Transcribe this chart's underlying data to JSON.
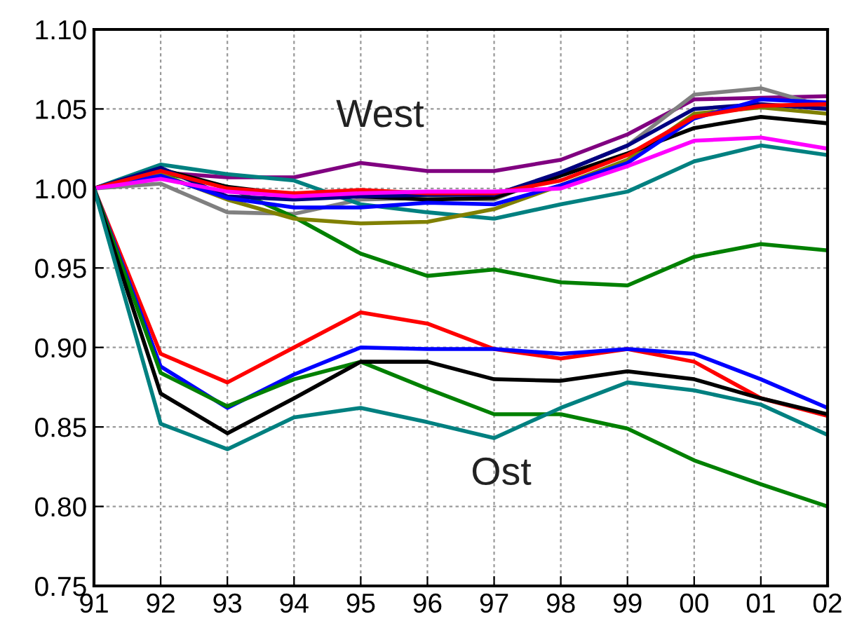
{
  "chart_data": {
    "type": "line",
    "x": [
      1991,
      1992,
      1993,
      1994,
      1995,
      1996,
      1997,
      1998,
      1999,
      2000,
      2001,
      2002
    ],
    "series": [
      {
        "color": "#800080",
        "values": [
          1.0,
          1.01,
          1.007,
          1.007,
          1.016,
          1.011,
          1.011,
          1.018,
          1.034,
          1.056,
          1.057,
          1.058
        ]
      },
      {
        "color": "#808080",
        "values": [
          1.0,
          1.003,
          0.985,
          0.984,
          0.993,
          0.994,
          0.993,
          1.01,
          1.027,
          1.059,
          1.063,
          1.051
        ]
      },
      {
        "color": "#008080",
        "values": [
          1.0,
          1.015,
          1.009,
          1.005,
          0.99,
          0.985,
          0.981,
          0.99,
          0.998,
          1.017,
          1.027,
          1.021
        ]
      },
      {
        "color": "#008000",
        "values": [
          1.0,
          1.01,
          1.001,
          0.982,
          0.959,
          0.945,
          0.949,
          0.941,
          0.939,
          0.957,
          0.965,
          0.961
        ]
      },
      {
        "color": "#808000",
        "values": [
          1.0,
          1.009,
          0.993,
          0.981,
          0.978,
          0.979,
          0.987,
          1.002,
          1.018,
          1.047,
          1.051,
          1.047
        ]
      },
      {
        "color": "#000000",
        "values": [
          1.0,
          1.012,
          1.001,
          0.996,
          0.995,
          0.993,
          0.994,
          1.008,
          1.022,
          1.038,
          1.045,
          1.041
        ]
      },
      {
        "color": "#000080",
        "values": [
          1.0,
          1.013,
          0.995,
          0.993,
          0.995,
          0.996,
          0.996,
          1.01,
          1.027,
          1.05,
          1.053,
          1.05
        ]
      },
      {
        "color": "#0000ff",
        "values": [
          1.0,
          1.008,
          0.994,
          0.988,
          0.988,
          0.991,
          0.99,
          1.002,
          1.016,
          1.044,
          1.056,
          1.054
        ]
      },
      {
        "color": "#ff0000",
        "values": [
          1.0,
          1.011,
          1.0,
          0.997,
          0.999,
          0.997,
          0.997,
          1.005,
          1.021,
          1.045,
          1.052,
          1.053
        ]
      },
      {
        "color": "#ff00ff",
        "values": [
          1.0,
          1.006,
          0.998,
          0.995,
          0.997,
          0.998,
          0.998,
          1.0,
          1.014,
          1.03,
          1.032,
          1.025
        ]
      },
      {
        "color": "#ff0000",
        "values": [
          1.0,
          0.896,
          0.878,
          0.9,
          0.922,
          0.915,
          0.899,
          0.893,
          0.899,
          0.891,
          0.868,
          0.857
        ]
      },
      {
        "color": "#0000ff",
        "values": [
          1.0,
          0.888,
          0.862,
          0.883,
          0.9,
          0.899,
          0.899,
          0.896,
          0.899,
          0.896,
          0.88,
          0.862
        ]
      },
      {
        "color": "#008000",
        "values": [
          1.0,
          0.884,
          0.863,
          0.88,
          0.891,
          0.874,
          0.858,
          0.858,
          0.849,
          0.829,
          0.814,
          0.8
        ]
      },
      {
        "color": "#000000",
        "values": [
          1.0,
          0.871,
          0.846,
          0.868,
          0.891,
          0.891,
          0.88,
          0.879,
          0.885,
          0.88,
          0.868,
          0.858
        ]
      },
      {
        "color": "#008080",
        "values": [
          1.0,
          0.852,
          0.836,
          0.856,
          0.862,
          0.853,
          0.843,
          0.862,
          0.878,
          0.873,
          0.864,
          0.845
        ]
      }
    ],
    "xlim": [
      1991,
      2002
    ],
    "xticks": [
      {
        "value": 1991,
        "label": "91"
      },
      {
        "value": 1992,
        "label": "92"
      },
      {
        "value": 1993,
        "label": "93"
      },
      {
        "value": 1994,
        "label": "94"
      },
      {
        "value": 1995,
        "label": "95"
      },
      {
        "value": 1996,
        "label": "96"
      },
      {
        "value": 1997,
        "label": "97"
      },
      {
        "value": 1998,
        "label": "98"
      },
      {
        "value": 1999,
        "label": "99"
      },
      {
        "value": 2000,
        "label": "00"
      },
      {
        "value": 2001,
        "label": "01"
      },
      {
        "value": 2002,
        "label": "02"
      }
    ],
    "ylim": [
      0.75,
      1.1
    ],
    "yticks": [
      {
        "value": 0.75,
        "label": "0.75"
      },
      {
        "value": 0.8,
        "label": "0.80"
      },
      {
        "value": 0.85,
        "label": "0.85"
      },
      {
        "value": 0.9,
        "label": "0.90"
      },
      {
        "value": 0.95,
        "label": "0.95"
      },
      {
        "value": 1.0,
        "label": "1.00"
      },
      {
        "value": 1.05,
        "label": "1.05"
      },
      {
        "value": 1.1,
        "label": "1.10"
      }
    ],
    "grid": true,
    "marker": "none",
    "line_style": "solid",
    "annotations": [
      "West",
      "Ost"
    ]
  }
}
